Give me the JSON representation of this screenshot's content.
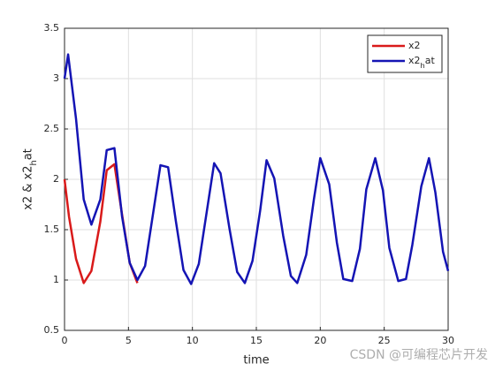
{
  "chart_data": {
    "type": "line",
    "xlabel": "time",
    "ylabel": "x2 & x2_hat",
    "xlim": [
      0,
      30
    ],
    "ylim": [
      0.5,
      3.5
    ],
    "xticks": [
      0,
      5,
      10,
      15,
      20,
      25,
      30
    ],
    "yticks": [
      0.5,
      1,
      1.5,
      2,
      2.5,
      3,
      3.5
    ],
    "grid": true,
    "legend": "northeast",
    "series": [
      {
        "name": "x2",
        "color": "#d91a1a",
        "x": [
          0,
          0.35,
          0.9,
          1.5,
          2.1,
          2.8,
          3.3,
          3.9,
          4.5,
          5.1,
          5.7
        ],
        "values": [
          2.0,
          1.63,
          1.21,
          0.97,
          1.09,
          1.58,
          2.09,
          2.15,
          1.65,
          1.17,
          0.97
        ]
      },
      {
        "name": "x2_hat",
        "color": "#1414b4",
        "x": [
          0,
          0.28,
          0.9,
          1.5,
          2.1,
          2.8,
          3.3,
          3.9,
          4.5,
          5.1,
          5.7,
          6.3,
          6.9,
          7.5,
          8.1,
          8.7,
          9.3,
          9.9,
          10.5,
          11.1,
          11.7,
          12.2,
          12.9,
          13.5,
          14.1,
          14.7,
          15.3,
          15.8,
          16.4,
          17.1,
          17.7,
          18.2,
          18.9,
          19.5,
          20.0,
          20.7,
          21.3,
          21.8,
          22.5,
          23.1,
          23.6,
          24.3,
          24.9,
          25.4,
          26.1,
          26.7,
          27.2,
          27.9,
          28.5,
          29.0,
          29.6,
          30
        ],
        "values": [
          3.0,
          3.24,
          2.6,
          1.8,
          1.55,
          1.8,
          2.29,
          2.31,
          1.63,
          1.17,
          1.0,
          1.14,
          1.64,
          2.14,
          2.12,
          1.59,
          1.1,
          0.96,
          1.16,
          1.66,
          2.16,
          2.06,
          1.51,
          1.08,
          0.97,
          1.19,
          1.69,
          2.19,
          2.01,
          1.44,
          1.04,
          0.97,
          1.25,
          1.8,
          2.21,
          1.95,
          1.37,
          1.01,
          0.99,
          1.31,
          1.9,
          2.21,
          1.89,
          1.32,
          0.99,
          1.01,
          1.35,
          1.93,
          2.21,
          1.87,
          1.28,
          1.09
        ]
      }
    ]
  },
  "watermark": "CSDN @可编程芯片开发"
}
